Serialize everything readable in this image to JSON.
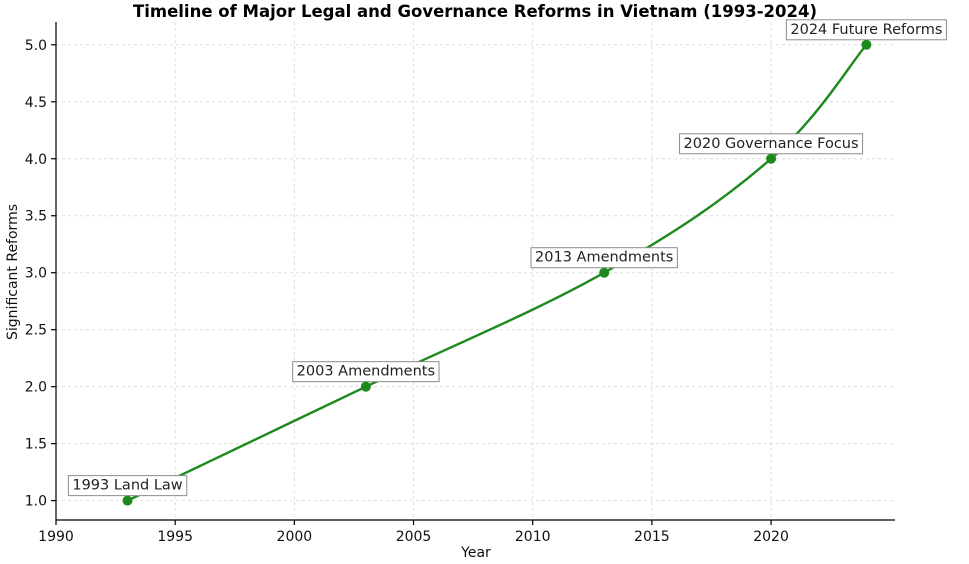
{
  "chart_data": {
    "type": "line",
    "title": "Timeline of Major Legal and Governance Reforms in Vietnam (1993-2024)",
    "xlabel": "Year",
    "ylabel": "Significant Reforms",
    "xlim": [
      1990,
      2025.2
    ],
    "ylim": [
      0.83,
      5.2
    ],
    "x_ticks": [
      1990,
      1995,
      2000,
      2005,
      2010,
      2015,
      2020
    ],
    "y_ticks": [
      "1.0",
      "1.5",
      "2.0",
      "2.5",
      "3.0",
      "3.5",
      "4.0",
      "4.5",
      "5.0"
    ],
    "grid": true,
    "line_color": "#1e8a1e",
    "series": [
      {
        "x": [
          1993,
          2003,
          2013,
          2020,
          2024
        ],
        "values": [
          1,
          2,
          3,
          4,
          5
        ]
      }
    ],
    "annotations": [
      {
        "text": "1993 Land Law",
        "x": 1993,
        "y": 1
      },
      {
        "text": "2003 Amendments",
        "x": 2003,
        "y": 2
      },
      {
        "text": "2013 Amendments",
        "x": 2013,
        "y": 3
      },
      {
        "text": "2020 Governance Focus",
        "x": 2020,
        "y": 4
      },
      {
        "text": "2024 Future Reforms",
        "x": 2024,
        "y": 5
      }
    ]
  }
}
